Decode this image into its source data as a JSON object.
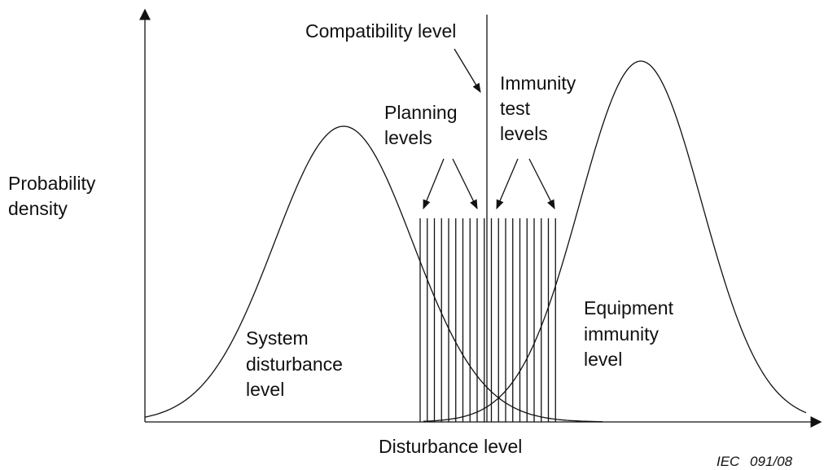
{
  "diagram": {
    "compatibility_label": "Compatibility level",
    "planning_label": [
      "Planning",
      "levels"
    ],
    "immunity_test_label": [
      "Immunity",
      "test",
      "levels"
    ],
    "y_axis_label": [
      "Probability",
      "density"
    ],
    "system_label": [
      "System",
      "disturbance",
      "level"
    ],
    "equipment_label": [
      "Equipment",
      "immunity",
      "level"
    ],
    "x_axis_label": "Disturbance level",
    "figure_id": "IEC 091/08"
  }
}
